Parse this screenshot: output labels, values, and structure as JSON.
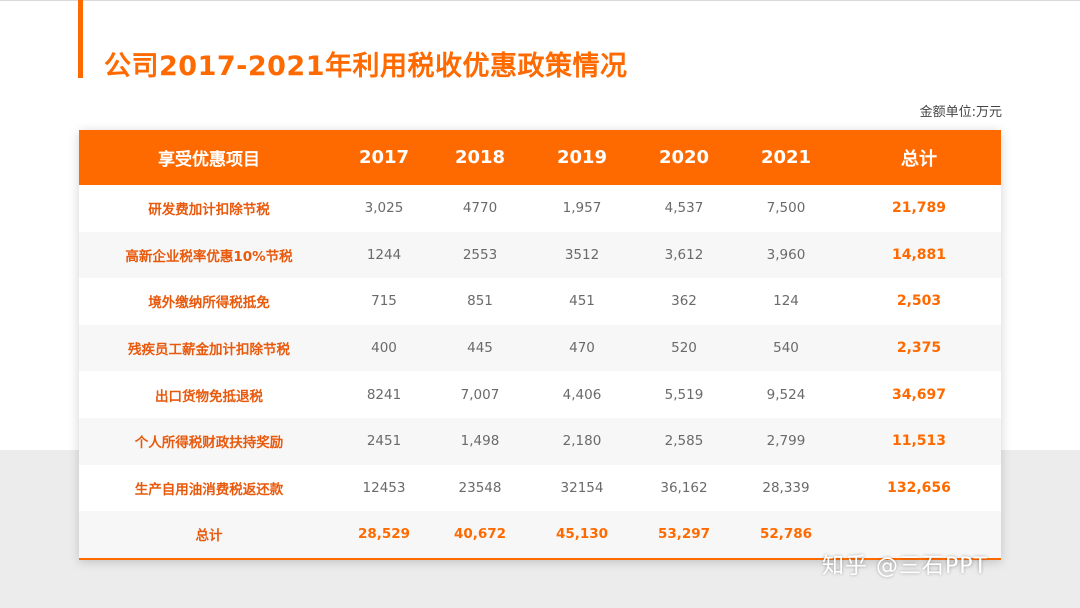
{
  "title": "公司2017-2021年利用税收优惠政策情况",
  "unit_note": "金额单位:万元",
  "watermark": "知乎 @三石PPT",
  "colors": {
    "accent": "#ff6a00",
    "label": "#e8590c",
    "value": "#6a6a6a"
  },
  "chart_data": {
    "type": "table",
    "headers": [
      "享受优惠项目",
      "2017",
      "2018",
      "2019",
      "2020",
      "2021",
      "总计"
    ],
    "rows": [
      {
        "label": "研发费加计扣除节税",
        "values": [
          "3,025",
          "4770",
          "1,957",
          "4,537",
          "7,500"
        ],
        "total": "21,789"
      },
      {
        "label": "高新企业税率优惠10%节税",
        "values": [
          "1244",
          "2553",
          "3512",
          "3,612",
          "3,960"
        ],
        "total": "14,881"
      },
      {
        "label": "境外缴纳所得税抵免",
        "values": [
          "715",
          "851",
          "451",
          "362",
          "124"
        ],
        "total": "2,503"
      },
      {
        "label": "残疾员工薪金加计扣除节税",
        "values": [
          "400",
          "445",
          "470",
          "520",
          "540"
        ],
        "total": "2,375"
      },
      {
        "label": "出口货物免抵退税",
        "values": [
          "8241",
          "7,007",
          "4,406",
          "5,519",
          "9,524"
        ],
        "total": "34,697"
      },
      {
        "label": "个人所得税财政扶持奖励",
        "values": [
          "2451",
          "1,498",
          "2,180",
          "2,585",
          "2,799"
        ],
        "total": "11,513"
      },
      {
        "label": "生产自用油消费税返还款",
        "values": [
          "12453",
          "23548",
          "32154",
          "36,162",
          "28,339"
        ],
        "total": "132,656"
      }
    ],
    "footer": {
      "label": "总计",
      "values": [
        "28,529",
        "40,672",
        "45,130",
        "53,297",
        "52,786"
      ],
      "total": ""
    }
  }
}
